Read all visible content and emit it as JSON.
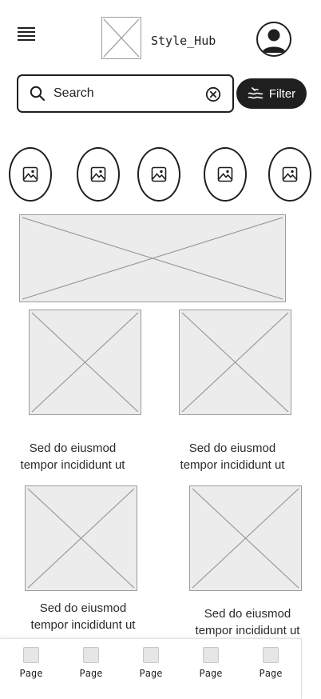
{
  "header": {
    "brand_name": "Style_Hub",
    "menu_icon": "hamburger-menu-icon",
    "logo_icon": "placeholder-image-icon",
    "avatar_icon": "user-avatar-icon"
  },
  "search": {
    "placeholder": "Search",
    "value": "",
    "icon": "search-icon",
    "clear_icon": "clear-circle-icon"
  },
  "filter": {
    "label": "Filter",
    "icon": "filter-waves-icon"
  },
  "categories": [
    {
      "icon": "image-icon"
    },
    {
      "icon": "image-icon"
    },
    {
      "icon": "image-icon"
    },
    {
      "icon": "image-icon"
    },
    {
      "icon": "image-icon"
    }
  ],
  "products": [
    {
      "line1": "Sed do eiusmod",
      "line2": "tempor incididunt ut"
    },
    {
      "line1": "Sed do eiusmod",
      "line2": "tempor incididunt ut"
    },
    {
      "line1": "Sed do eiusmod",
      "line2": "tempor incididunt ut"
    },
    {
      "line1": "Sed do eiusmod",
      "line2": "tempor incididunt ut"
    }
  ],
  "bottom_nav": [
    {
      "label": "Page"
    },
    {
      "label": "Page"
    },
    {
      "label": "Page"
    },
    {
      "label": "Page"
    },
    {
      "label": "Page"
    }
  ],
  "colors": {
    "primary_dark": "#1f1f1f",
    "placeholder_fill": "#ececec",
    "placeholder_stroke": "#9b9b9b"
  }
}
